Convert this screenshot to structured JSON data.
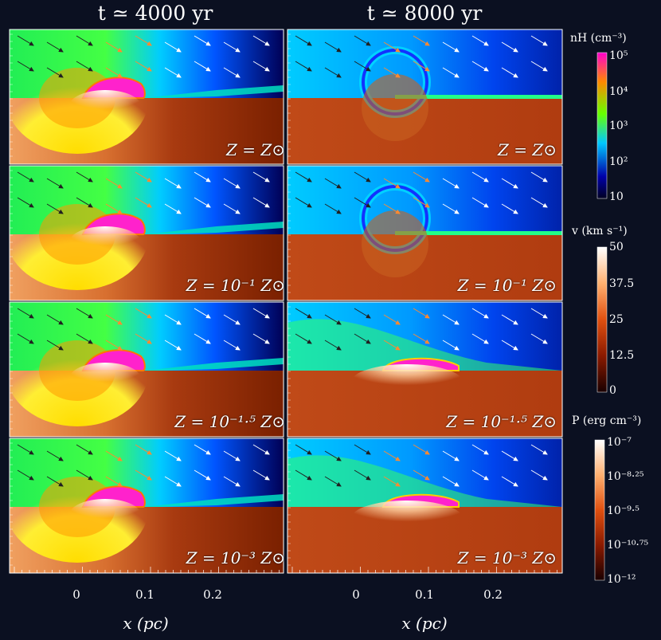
{
  "titles": {
    "left": "t ≃ 4000 yr",
    "right": "t ≃ 8000 yr"
  },
  "xaxis": {
    "label": "x (pc)",
    "ticks": [
      "0",
      "0.1",
      "0.2"
    ]
  },
  "panels": [
    {
      "row": 0,
      "left_label": "Z = Z⊙",
      "right_label": "Z = Z⊙"
    },
    {
      "row": 1,
      "left_label": "Z = 10⁻¹ Z⊙",
      "right_label": "Z = 10⁻¹ Z⊙"
    },
    {
      "row": 2,
      "left_label": "Z = 10⁻¹·⁵ Z⊙",
      "right_label": "Z = 10⁻¹·⁵ Z⊙"
    },
    {
      "row": 3,
      "left_label": "Z = 10⁻³ Z⊙",
      "right_label": "Z = 10⁻³ Z⊙"
    }
  ],
  "colorbars": {
    "density": {
      "title": "nH (cm⁻³)",
      "ticks": [
        "10⁵",
        "10⁴",
        "10³",
        "10²",
        "10"
      ],
      "colors": [
        "#ff00cc",
        "#ff8800",
        "#66ff00",
        "#00c8ff",
        "#0000aa",
        "#000022"
      ]
    },
    "velocity": {
      "title": "v (km s⁻¹)",
      "ticks": [
        "50",
        "37.5",
        "25",
        "12.5",
        "0"
      ],
      "colors": [
        "#ffffff",
        "#ffb070",
        "#e05010",
        "#8a1a00",
        "#1a0000"
      ]
    },
    "pressure": {
      "title": "P (erg cm⁻³)",
      "ticks": [
        "10⁻⁷",
        "10⁻⁸·²⁵",
        "10⁻⁹·⁵",
        "10⁻¹⁰·⁷⁵",
        "10⁻¹²"
      ],
      "colors": [
        "#ffffff",
        "#ffb070",
        "#e05010",
        "#8a1a00",
        "#1a0000"
      ]
    }
  }
}
